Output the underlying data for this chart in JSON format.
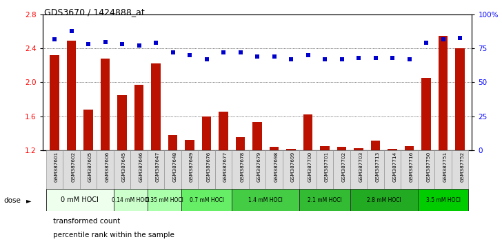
{
  "title": "GDS3670 / 1424888_at",
  "samples": [
    "GSM387601",
    "GSM387602",
    "GSM387605",
    "GSM387606",
    "GSM387645",
    "GSM387646",
    "GSM387647",
    "GSM387648",
    "GSM387649",
    "GSM387676",
    "GSM387677",
    "GSM387678",
    "GSM387679",
    "GSM387698",
    "GSM387699",
    "GSM387700",
    "GSM387701",
    "GSM387702",
    "GSM387703",
    "GSM387713",
    "GSM387714",
    "GSM387716",
    "GSM387750",
    "GSM387751",
    "GSM387752"
  ],
  "transformed_count": [
    2.32,
    2.49,
    1.68,
    2.28,
    1.85,
    1.97,
    2.22,
    1.38,
    1.32,
    1.6,
    1.65,
    1.35,
    1.53,
    1.24,
    1.21,
    1.62,
    1.25,
    1.24,
    1.22,
    1.31,
    1.21,
    1.25,
    2.05,
    2.55,
    2.4
  ],
  "percentile_rank": [
    82,
    88,
    78,
    80,
    78,
    77,
    79,
    72,
    70,
    67,
    72,
    72,
    69,
    69,
    67,
    70,
    67,
    67,
    68,
    68,
    68,
    67,
    79,
    82,
    83
  ],
  "dose_groups": [
    {
      "label": "0 mM HOCl",
      "start": 0,
      "end": 4,
      "color": "#eeffee"
    },
    {
      "label": "0.14 mM HOCl",
      "start": 4,
      "end": 6,
      "color": "#ccffcc"
    },
    {
      "label": "0.35 mM HOCl",
      "start": 6,
      "end": 8,
      "color": "#aaffaa"
    },
    {
      "label": "0.7 mM HOCl",
      "start": 8,
      "end": 11,
      "color": "#66ee66"
    },
    {
      "label": "1.4 mM HOCl",
      "start": 11,
      "end": 15,
      "color": "#44cc44"
    },
    {
      "label": "2.1 mM HOCl",
      "start": 15,
      "end": 18,
      "color": "#33bb33"
    },
    {
      "label": "2.8 mM HOCl",
      "start": 18,
      "end": 22,
      "color": "#22aa22"
    },
    {
      "label": "3.5 mM HOCl",
      "start": 22,
      "end": 25,
      "color": "#00cc00"
    }
  ],
  "bar_color": "#bb1100",
  "dot_color": "#0000cc",
  "bg_color": "#ffffff",
  "ylim_left": [
    1.2,
    2.8
  ],
  "ylim_right": [
    0,
    100
  ],
  "yticks_left": [
    1.2,
    1.6,
    2.0,
    2.4,
    2.8
  ],
  "yticks_right": [
    0,
    25,
    50,
    75,
    100
  ],
  "ytick_right_labels": [
    "0",
    "25",
    "50",
    "75",
    "100%"
  ]
}
